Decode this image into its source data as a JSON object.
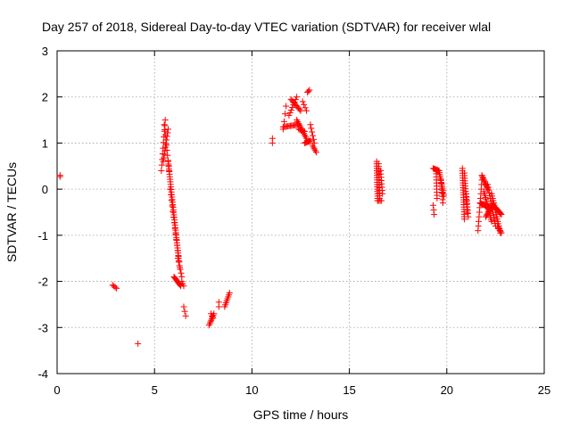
{
  "chart_data": {
    "type": "scatter",
    "title": "Day 257 of 2018, Sidereal Day-to-day VTEC variation (SDTVAR) for receiver wlal",
    "xlabel": "GPS time / hours",
    "ylabel": "SDTVAR / TECUs",
    "xlim": [
      0,
      25
    ],
    "ylim": [
      -4,
      3
    ],
    "xticks": [
      "0",
      "5",
      "10",
      "15",
      "20",
      "25"
    ],
    "yticks": [
      "-4",
      "-3",
      "-2",
      "-1",
      "0",
      "1",
      "2",
      "3"
    ],
    "grid": true,
    "marker": "+",
    "color": "#ff0000",
    "segments": [
      {
        "x": [
          0.15,
          0.15
        ],
        "y": [
          0.3,
          0.27
        ],
        "n": 2
      },
      {
        "x": [
          2.85,
          3.05
        ],
        "y": [
          -2.08,
          -2.15
        ],
        "n": 4
      },
      {
        "x": [
          4.15,
          4.15
        ],
        "y": [
          -3.35,
          -3.35
        ],
        "n": 1
      },
      {
        "x": [
          5.35,
          5.55
        ],
        "y": [
          0.4,
          1.5
        ],
        "n": 10
      },
      {
        "x": [
          5.45,
          5.7
        ],
        "y": [
          0.6,
          1.3
        ],
        "n": 10
      },
      {
        "x": [
          5.5,
          5.75
        ],
        "y": [
          1.4,
          0.4
        ],
        "n": 10
      },
      {
        "x": [
          5.7,
          6.25
        ],
        "y": [
          0.6,
          -1.55
        ],
        "n": 40
      },
      {
        "x": [
          5.8,
          6.3
        ],
        "y": [
          0.0,
          -1.7
        ],
        "n": 15
      },
      {
        "x": [
          6.2,
          6.4
        ],
        "y": [
          -1.5,
          -1.9
        ],
        "n": 6
      },
      {
        "x": [
          6.0,
          6.35
        ],
        "y": [
          -1.9,
          -2.1
        ],
        "n": 10
      },
      {
        "x": [
          6.4,
          6.5
        ],
        "y": [
          -2.0,
          -2.1
        ],
        "n": 3
      },
      {
        "x": [
          6.5,
          6.6
        ],
        "y": [
          -2.55,
          -2.75
        ],
        "n": 3
      },
      {
        "x": [
          7.8,
          8.05
        ],
        "y": [
          -2.95,
          -2.7
        ],
        "n": 8
      },
      {
        "x": [
          7.9,
          8.0
        ],
        "y": [
          -2.7,
          -2.8
        ],
        "n": 3
      },
      {
        "x": [
          8.3,
          8.3
        ],
        "y": [
          -2.45,
          -2.55
        ],
        "n": 2
      },
      {
        "x": [
          8.6,
          8.85
        ],
        "y": [
          -2.55,
          -2.25
        ],
        "n": 8
      },
      {
        "x": [
          11.05,
          11.05
        ],
        "y": [
          1.0,
          1.1
        ],
        "n": 2
      },
      {
        "x": [
          11.6,
          11.75
        ],
        "y": [
          1.3,
          1.8
        ],
        "n": 4
      },
      {
        "x": [
          11.6,
          12.4
        ],
        "y": [
          1.35,
          1.4
        ],
        "n": 14
      },
      {
        "x": [
          11.9,
          12.3
        ],
        "y": [
          1.6,
          2.0
        ],
        "n": 8
      },
      {
        "x": [
          12.0,
          12.5
        ],
        "y": [
          1.95,
          1.7
        ],
        "n": 10
      },
      {
        "x": [
          12.3,
          12.8
        ],
        "y": [
          1.5,
          1.1
        ],
        "n": 12
      },
      {
        "x": [
          12.4,
          12.7
        ],
        "y": [
          1.3,
          1.25
        ],
        "n": 6
      },
      {
        "x": [
          12.7,
          13.0
        ],
        "y": [
          1.0,
          1.05
        ],
        "n": 8
      },
      {
        "x": [
          12.6,
          12.8
        ],
        "y": [
          1.9,
          1.7
        ],
        "n": 4
      },
      {
        "x": [
          12.85,
          12.95
        ],
        "y": [
          2.1,
          2.15
        ],
        "n": 3
      },
      {
        "x": [
          13.0,
          13.2
        ],
        "y": [
          1.4,
          1.0
        ],
        "n": 6
      },
      {
        "x": [
          13.1,
          13.3
        ],
        "y": [
          0.95,
          0.8
        ],
        "n": 5
      },
      {
        "x": [
          16.4,
          16.45
        ],
        "y": [
          0.6,
          -0.25
        ],
        "n": 18
      },
      {
        "x": [
          16.5,
          16.55
        ],
        "y": [
          0.55,
          -0.2
        ],
        "n": 14
      },
      {
        "x": [
          16.6,
          16.7
        ],
        "y": [
          0.4,
          -0.1
        ],
        "n": 8
      },
      {
        "x": [
          16.45,
          16.65
        ],
        "y": [
          -0.25,
          -0.25
        ],
        "n": 4
      },
      {
        "x": [
          19.3,
          19.6
        ],
        "y": [
          0.45,
          0.4
        ],
        "n": 8
      },
      {
        "x": [
          19.3,
          19.35
        ],
        "y": [
          -0.35,
          -0.55
        ],
        "n": 3
      },
      {
        "x": [
          19.45,
          19.5
        ],
        "y": [
          0.4,
          -0.2
        ],
        "n": 10
      },
      {
        "x": [
          19.6,
          19.85
        ],
        "y": [
          0.4,
          -0.15
        ],
        "n": 14
      },
      {
        "x": [
          19.7,
          19.8
        ],
        "y": [
          0.2,
          -0.3
        ],
        "n": 8
      },
      {
        "x": [
          20.8,
          20.9
        ],
        "y": [
          0.45,
          -0.65
        ],
        "n": 22
      },
      {
        "x": [
          20.9,
          21.05
        ],
        "y": [
          0.35,
          -0.5
        ],
        "n": 16
      },
      {
        "x": [
          21.0,
          21.1
        ],
        "y": [
          -0.1,
          -0.6
        ],
        "n": 8
      },
      {
        "x": [
          21.6,
          21.8
        ],
        "y": [
          -0.9,
          0.2
        ],
        "n": 12
      },
      {
        "x": [
          21.8,
          22.1
        ],
        "y": [
          0.3,
          0.0
        ],
        "n": 12
      },
      {
        "x": [
          21.7,
          22.2
        ],
        "y": [
          -0.3,
          -0.4
        ],
        "n": 14
      },
      {
        "x": [
          21.9,
          22.3
        ],
        "y": [
          -0.05,
          -0.7
        ],
        "n": 16
      },
      {
        "x": [
          22.1,
          22.5
        ],
        "y": [
          0.1,
          -0.8
        ],
        "n": 16
      },
      {
        "x": [
          22.0,
          22.4
        ],
        "y": [
          -0.6,
          -0.3
        ],
        "n": 12
      },
      {
        "x": [
          22.3,
          22.75
        ],
        "y": [
          -0.1,
          -0.95
        ],
        "n": 18
      },
      {
        "x": [
          22.5,
          22.8
        ],
        "y": [
          -0.4,
          -0.55
        ],
        "n": 10
      },
      {
        "x": [
          22.6,
          22.8
        ],
        "y": [
          -0.8,
          -0.95
        ],
        "n": 6
      }
    ]
  }
}
